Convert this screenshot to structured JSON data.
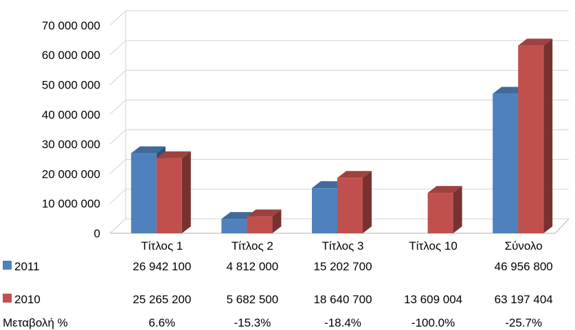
{
  "chart_data": {
    "type": "bar",
    "style": "3d-clustered-column-with-data-table",
    "categories": [
      "Τίτλος 1",
      "Τίτλος 2",
      "Τίτλος 3",
      "Τίτλος 10",
      "Σύνολο"
    ],
    "series": [
      {
        "name": "2011",
        "color": "#4F81BD",
        "values": [
          26942100,
          4812000,
          15202700,
          null,
          46956800
        ],
        "labels": [
          "26 942 100",
          "4 812 000",
          "15 202 700",
          "",
          "46 956 800"
        ]
      },
      {
        "name": "2010",
        "color": "#C0504D",
        "values": [
          25265200,
          5682500,
          18640700,
          13609004,
          63197404
        ],
        "labels": [
          "25 265 200",
          "5 682 500",
          "18 640 700",
          "13 609 004",
          "63 197 404"
        ]
      }
    ],
    "change_row": {
      "label": "Μεταβολή %",
      "values": [
        "6.6%",
        "-15.3%",
        "-18.4%",
        "-100.0%",
        "-25.7%"
      ]
    },
    "ylim": [
      0,
      70000000
    ],
    "yticks": [
      0,
      10000000,
      20000000,
      30000000,
      40000000,
      50000000,
      60000000,
      70000000
    ],
    "ytick_labels": [
      "0",
      "10 000 000",
      "20 000 000",
      "30 000 000",
      "40 000 000",
      "50 000 000",
      "60 000 000",
      "70 000 000"
    ],
    "grid": true,
    "title": "",
    "xlabel": "",
    "ylabel": ""
  }
}
